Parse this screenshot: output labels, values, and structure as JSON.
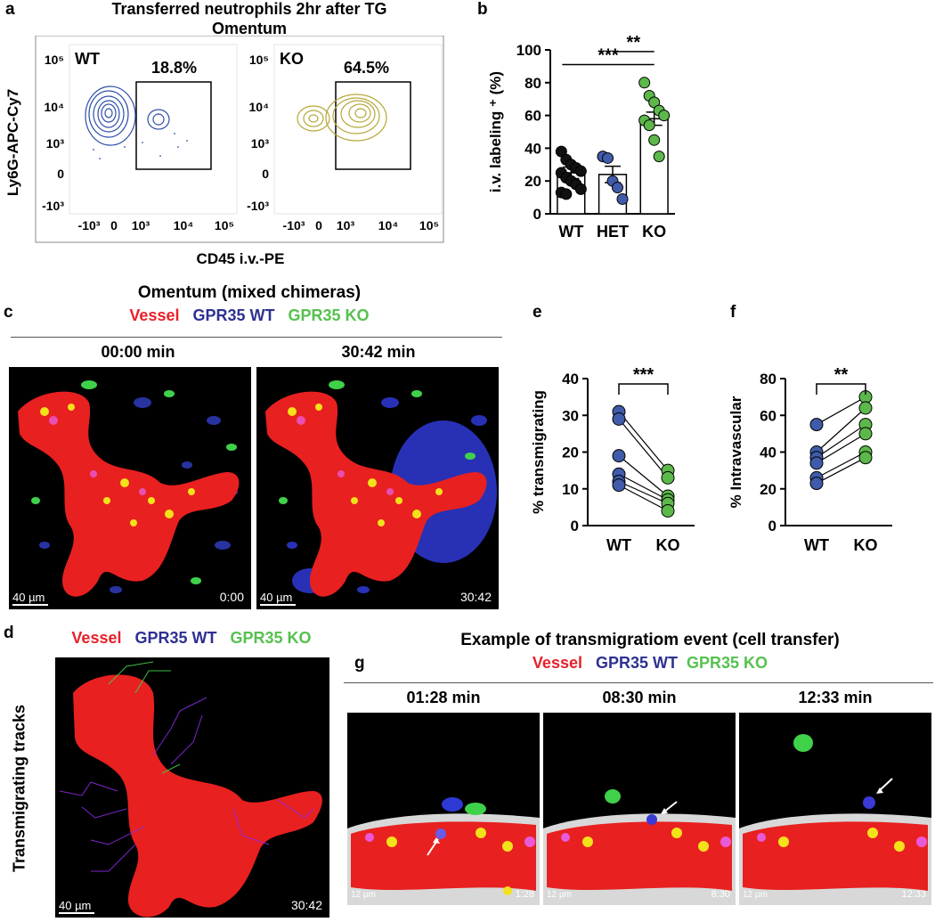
{
  "panel_labels": {
    "a": "a",
    "b": "b",
    "c": "c",
    "d": "d",
    "e": "e",
    "f": "f",
    "g": "g"
  },
  "panel_a": {
    "title_line1": "Transferred neutrophils 2hr after TG",
    "title_line2": "Omentum",
    "ylabel": "Ly6G-APC-Cy7",
    "xlabel": "CD45 i.v.-PE",
    "left_plot": {
      "genotype": "WT",
      "gate_percent": "18.8%",
      "contour_color": "#2f4fa8"
    },
    "right_plot": {
      "genotype": "KO",
      "gate_percent": "64.5%",
      "contour_color": "#b5a83a"
    },
    "y_ticks": [
      "10⁵",
      "10⁴",
      "10³",
      "0",
      "-10³"
    ],
    "x_ticks": [
      "-10³",
      "0",
      "10³",
      "10⁴",
      "10⁵"
    ]
  },
  "panel_c": {
    "title": "Omentum (mixed chimeras)",
    "legend": {
      "vessel": "Vessel",
      "wt": "GPR35 WT",
      "ko": "GPR35 KO"
    },
    "frames": [
      {
        "time_label": "00:00 min",
        "scale": "40 µm",
        "stamp": "0:00"
      },
      {
        "time_label": "30:42 min",
        "scale": "40 µm",
        "stamp": "30:42"
      }
    ]
  },
  "panel_d": {
    "legend": {
      "vessel": "Vessel",
      "wt": "GPR35 WT",
      "ko": "GPR35 KO"
    },
    "side_label": "Transmigrating tracks",
    "scale": "40 µm",
    "stamp": "30:42"
  },
  "panel_g": {
    "title": "Example of transmigratiom event (cell transfer)",
    "legend": {
      "vessel": "Vessel",
      "wt": "GPR35 WT",
      "ko": "GPR35 KO"
    },
    "frames": [
      {
        "time_label": "01:28 min",
        "scale": "12 µm",
        "stamp": "1:28"
      },
      {
        "time_label": "08:30 min",
        "scale": "12 µm",
        "stamp": "8:30"
      },
      {
        "time_label": "12:33 min",
        "scale": "12 µm",
        "stamp": "12:33"
      }
    ]
  },
  "colors": {
    "vessel": "#e8202a",
    "wt": "#2e3192",
    "ko": "#56c14f",
    "wt_dot": "#3f5ba9",
    "ko_dot": "#5cb84a"
  },
  "chart_data": [
    {
      "id": "b",
      "type": "bar",
      "categories": [
        "WT",
        "HET",
        "KO"
      ],
      "values": [
        25,
        24,
        58
      ],
      "errors": [
        3.5,
        5,
        4
      ],
      "points": [
        [
          38,
          33,
          30,
          28,
          26,
          25,
          22,
          20,
          18,
          15,
          13,
          12
        ],
        [
          35,
          34,
          20,
          16,
          9
        ],
        [
          80,
          72,
          68,
          63,
          60,
          57,
          54,
          45,
          35
        ]
      ],
      "point_colors": [
        "#111111",
        "#3f5ba9",
        "#5cb84a"
      ],
      "ylabel": "i.v. labeling ⁺ (%)",
      "ylim": [
        0,
        100
      ],
      "yticks": [
        0,
        20,
        40,
        60,
        80,
        100
      ],
      "significance": [
        {
          "from": "WT",
          "to": "KO",
          "label": "***"
        },
        {
          "from": "HET",
          "to": "KO",
          "label": "**"
        }
      ]
    },
    {
      "id": "e",
      "type": "scatter",
      "categories": [
        "WT",
        "KO"
      ],
      "pairs": [
        [
          31,
          15
        ],
        [
          29,
          13
        ],
        [
          19,
          8
        ],
        [
          14,
          7
        ],
        [
          12,
          6
        ],
        [
          11,
          4
        ]
      ],
      "ylabel": "% transmigrating",
      "ylim": [
        0,
        40
      ],
      "yticks": [
        0,
        10,
        20,
        30,
        40
      ],
      "significance": [
        {
          "from": "WT",
          "to": "KO",
          "label": "***"
        }
      ]
    },
    {
      "id": "f",
      "type": "scatter",
      "categories": [
        "WT",
        "KO"
      ],
      "pairs": [
        [
          55,
          70
        ],
        [
          40,
          64
        ],
        [
          37,
          55
        ],
        [
          34,
          50
        ],
        [
          26,
          40
        ],
        [
          23,
          37
        ]
      ],
      "ylabel": "% Intravascular",
      "ylim": [
        0,
        80
      ],
      "yticks": [
        0,
        20,
        40,
        60,
        80
      ],
      "significance": [
        {
          "from": "WT",
          "to": "KO",
          "label": "**"
        }
      ]
    }
  ]
}
